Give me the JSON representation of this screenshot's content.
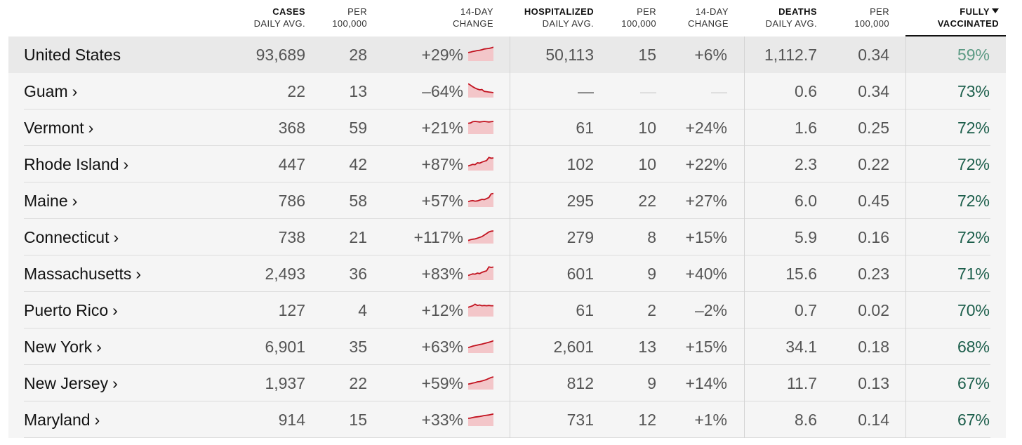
{
  "headers": {
    "cases_daily": {
      "l1": "CASES",
      "l2": "DAILY AVG."
    },
    "cases_per": {
      "l1": "PER",
      "l2": "100,000"
    },
    "cases_change": {
      "l1": "14-DAY",
      "l2": "CHANGE"
    },
    "hosp_daily": {
      "l1": "HOSPITALIZED",
      "l2": "DAILY AVG."
    },
    "hosp_per": {
      "l1": "PER",
      "l2": "100,000"
    },
    "hosp_change": {
      "l1": "14-DAY",
      "l2": "CHANGE"
    },
    "deaths_daily": {
      "l1": "DEATHS",
      "l2": "DAILY AVG."
    },
    "deaths_per": {
      "l1": "PER",
      "l2": "100,000"
    },
    "vaccinated": {
      "l1": "FULLY",
      "l2": "VACCINATED"
    }
  },
  "rows": [
    {
      "name": "United States",
      "link": false,
      "cases": "93,689",
      "cases_per": "28",
      "cases_change": "+29%",
      "sparkline": [
        0.55,
        0.58,
        0.62,
        0.65,
        0.68,
        0.7,
        0.73,
        0.78,
        0.8,
        0.82,
        0.85,
        0.9
      ],
      "hosp": "50,113",
      "hosp_per": "15",
      "hosp_change": "+6%",
      "deaths": "1,112.7",
      "deaths_per": "0.34",
      "vaccinated": "59%"
    },
    {
      "name": "Guam",
      "link": true,
      "cases": "22",
      "cases_per": "13",
      "cases_change": "–64%",
      "sparkline": [
        0.9,
        0.8,
        0.7,
        0.62,
        0.55,
        0.5,
        0.52,
        0.4,
        0.38,
        0.36,
        0.34,
        0.32
      ],
      "hosp": "—",
      "hosp_per": "—",
      "hosp_change": "—",
      "deaths": "0.6",
      "deaths_per": "0.34",
      "vaccinated": "73%"
    },
    {
      "name": "Vermont",
      "link": true,
      "cases": "368",
      "cases_per": "59",
      "cases_change": "+21%",
      "sparkline": [
        0.7,
        0.72,
        0.8,
        0.82,
        0.8,
        0.78,
        0.8,
        0.82,
        0.8,
        0.78,
        0.8,
        0.82
      ],
      "hosp": "61",
      "hosp_per": "10",
      "hosp_change": "+24%",
      "deaths": "1.6",
      "deaths_per": "0.25",
      "vaccinated": "72%"
    },
    {
      "name": "Rhode Island",
      "link": true,
      "cases": "447",
      "cases_per": "42",
      "cases_change": "+87%",
      "sparkline": [
        0.3,
        0.35,
        0.4,
        0.38,
        0.5,
        0.48,
        0.55,
        0.6,
        0.65,
        0.85,
        0.8,
        0.82
      ],
      "hosp": "102",
      "hosp_per": "10",
      "hosp_change": "+22%",
      "deaths": "2.3",
      "deaths_per": "0.22",
      "vaccinated": "72%"
    },
    {
      "name": "Maine",
      "link": true,
      "cases": "786",
      "cases_per": "58",
      "cases_change": "+57%",
      "sparkline": [
        0.35,
        0.4,
        0.42,
        0.38,
        0.4,
        0.45,
        0.5,
        0.48,
        0.55,
        0.62,
        0.85,
        0.88
      ],
      "hosp": "295",
      "hosp_per": "22",
      "hosp_change": "+27%",
      "deaths": "6.0",
      "deaths_per": "0.45",
      "vaccinated": "72%"
    },
    {
      "name": "Connecticut",
      "link": true,
      "cases": "738",
      "cases_per": "21",
      "cases_change": "+117%",
      "sparkline": [
        0.2,
        0.25,
        0.28,
        0.3,
        0.35,
        0.4,
        0.45,
        0.55,
        0.65,
        0.75,
        0.8,
        0.82
      ],
      "hosp": "279",
      "hosp_per": "8",
      "hosp_change": "+15%",
      "deaths": "5.9",
      "deaths_per": "0.16",
      "vaccinated": "72%"
    },
    {
      "name": "Massachusetts",
      "link": true,
      "cases": "2,493",
      "cases_per": "36",
      "cases_change": "+83%",
      "sparkline": [
        0.3,
        0.35,
        0.4,
        0.38,
        0.45,
        0.42,
        0.5,
        0.55,
        0.6,
        0.85,
        0.82,
        0.84
      ],
      "hosp": "601",
      "hosp_per": "9",
      "hosp_change": "+40%",
      "deaths": "15.6",
      "deaths_per": "0.23",
      "vaccinated": "71%"
    },
    {
      "name": "Puerto Rico",
      "link": true,
      "cases": "127",
      "cases_per": "4",
      "cases_change": "+12%",
      "sparkline": [
        0.6,
        0.65,
        0.7,
        0.8,
        0.72,
        0.75,
        0.7,
        0.72,
        0.7,
        0.72,
        0.7,
        0.7
      ],
      "hosp": "61",
      "hosp_per": "2",
      "hosp_change": "–2%",
      "deaths": "0.7",
      "deaths_per": "0.02",
      "vaccinated": "70%"
    },
    {
      "name": "New York",
      "link": true,
      "cases": "6,901",
      "cases_per": "35",
      "cases_change": "+63%",
      "sparkline": [
        0.35,
        0.4,
        0.45,
        0.48,
        0.52,
        0.55,
        0.58,
        0.62,
        0.66,
        0.7,
        0.74,
        0.8
      ],
      "hosp": "2,601",
      "hosp_per": "13",
      "hosp_change": "+15%",
      "deaths": "34.1",
      "deaths_per": "0.18",
      "vaccinated": "68%"
    },
    {
      "name": "New Jersey",
      "link": true,
      "cases": "1,937",
      "cases_per": "22",
      "cases_change": "+59%",
      "sparkline": [
        0.35,
        0.38,
        0.42,
        0.45,
        0.5,
        0.52,
        0.56,
        0.6,
        0.65,
        0.72,
        0.78,
        0.82
      ],
      "hosp": "812",
      "hosp_per": "9",
      "hosp_change": "+14%",
      "deaths": "11.7",
      "deaths_per": "0.13",
      "vaccinated": "67%"
    },
    {
      "name": "Maryland",
      "link": true,
      "cases": "914",
      "cases_per": "15",
      "cases_change": "+33%",
      "sparkline": [
        0.5,
        0.52,
        0.55,
        0.58,
        0.6,
        0.62,
        0.65,
        0.68,
        0.7,
        0.72,
        0.75,
        0.78
      ],
      "hosp": "731",
      "hosp_per": "12",
      "hosp_change": "+1%",
      "deaths": "8.6",
      "deaths_per": "0.14",
      "vaccinated": "67%"
    }
  ]
}
